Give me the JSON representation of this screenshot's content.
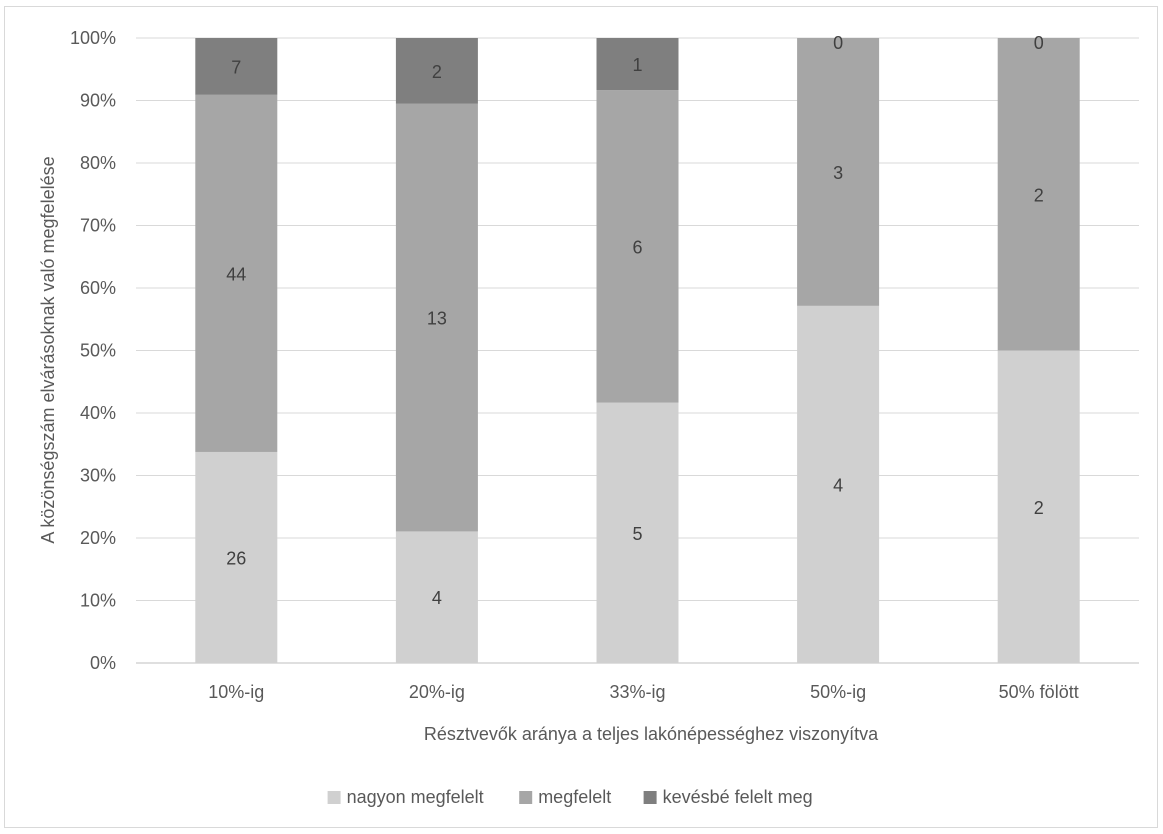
{
  "chart_data": {
    "type": "bar",
    "stacked": true,
    "normalized": true,
    "categories": [
      "10%-ig",
      "20%-ig",
      "33%-ig",
      "50%-ig",
      "50% fölött"
    ],
    "series": [
      {
        "name": "nagyon megfelelt",
        "values": [
          26,
          4,
          5,
          4,
          2
        ],
        "color": "#d0d0d0"
      },
      {
        "name": "megfelelt",
        "values": [
          44,
          13,
          6,
          3,
          2
        ],
        "color": "#a6a6a6"
      },
      {
        "name": "kevésbé felelt meg",
        "values": [
          7,
          2,
          1,
          0,
          0
        ],
        "color": "#7f7f7f"
      }
    ],
    "ylabel": "A közönségszám elvárásoknak való megfelelése",
    "xlabel": "Résztvevők aránya a teljes lakónépességhez viszonyítva",
    "yticks": [
      "0%",
      "10%",
      "20%",
      "30%",
      "40%",
      "50%",
      "60%",
      "70%",
      "80%",
      "90%",
      "100%"
    ],
    "ylim": [
      0,
      100
    ],
    "grid": true,
    "legend_position": "bottom"
  }
}
